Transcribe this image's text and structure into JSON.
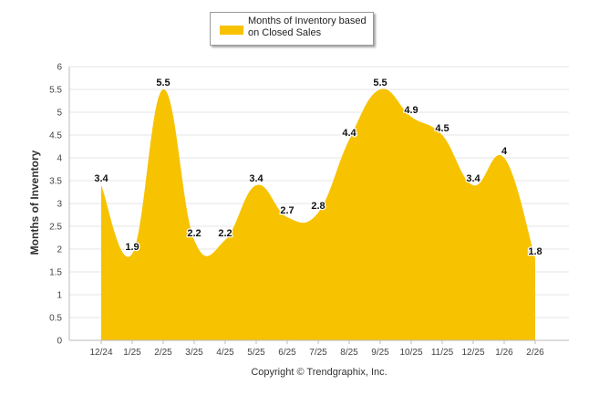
{
  "chart_data": {
    "type": "area",
    "series_name": "Months of Inventory based on Closed Sales",
    "categories": [
      "12/24",
      "1/25",
      "2/25",
      "3/25",
      "4/25",
      "5/25",
      "6/25",
      "7/25",
      "8/25",
      "9/25",
      "10/25",
      "11/25",
      "12/25",
      "1/26",
      "2/26"
    ],
    "values": [
      3.4,
      1.9,
      5.5,
      2.2,
      2.2,
      3.4,
      2.7,
      2.8,
      4.4,
      5.5,
      4.9,
      4.5,
      3.4,
      4,
      1.8
    ],
    "data_labels": [
      "3.4",
      "1.9",
      "5.5",
      "2.2",
      "2.2",
      "3.4",
      "2.7",
      "2.8",
      "4.4",
      "5.5",
      "4.9",
      "4.5",
      "3.4",
      "4",
      "1.8"
    ],
    "ylabel": "Months of Inventory",
    "xlabel": "",
    "ylim": [
      0,
      6
    ],
    "yticks": [
      "0",
      "0.5",
      "1",
      "1.5",
      "2",
      "2.5",
      "3",
      "3.5",
      "4",
      "4.5",
      "5",
      "5.5",
      "6"
    ],
    "grid": true,
    "legend": "top-center",
    "color": "#f7c200"
  },
  "legend": {
    "label": "Months of Inventory based on Closed Sales"
  },
  "footer": {
    "copyright": "Copyright © Trendgraphix, Inc."
  }
}
